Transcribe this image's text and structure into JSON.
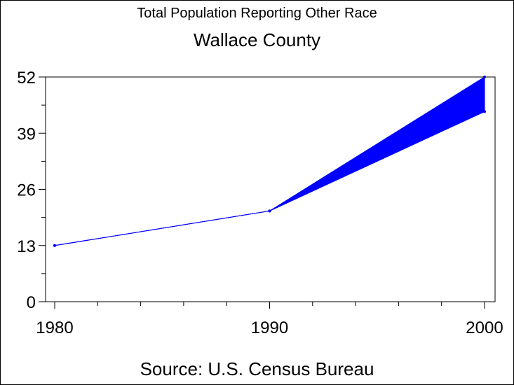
{
  "chart_data": {
    "type": "line",
    "title": "Wallace County",
    "subtitle": "Total Population Reporting Other Race",
    "footnote": "Source: U.S. Census Bureau",
    "xlabel": "",
    "ylabel": "",
    "x": [
      1980,
      1990,
      2000
    ],
    "x_tick_labels": [
      "1980",
      "1990",
      "2000"
    ],
    "xlim": [
      1980,
      2000
    ],
    "y_ticks": [
      0,
      13,
      26,
      39,
      52
    ],
    "y_tick_labels": [
      "0",
      "13",
      "26",
      "39",
      "52"
    ],
    "ylim": [
      0,
      52
    ],
    "series": [
      {
        "values": [
          13,
          21,
          52
        ]
      },
      {
        "values": [
          13,
          21,
          44
        ]
      }
    ],
    "fill_between_series": true,
    "grid": false,
    "color": "#0000ff"
  }
}
